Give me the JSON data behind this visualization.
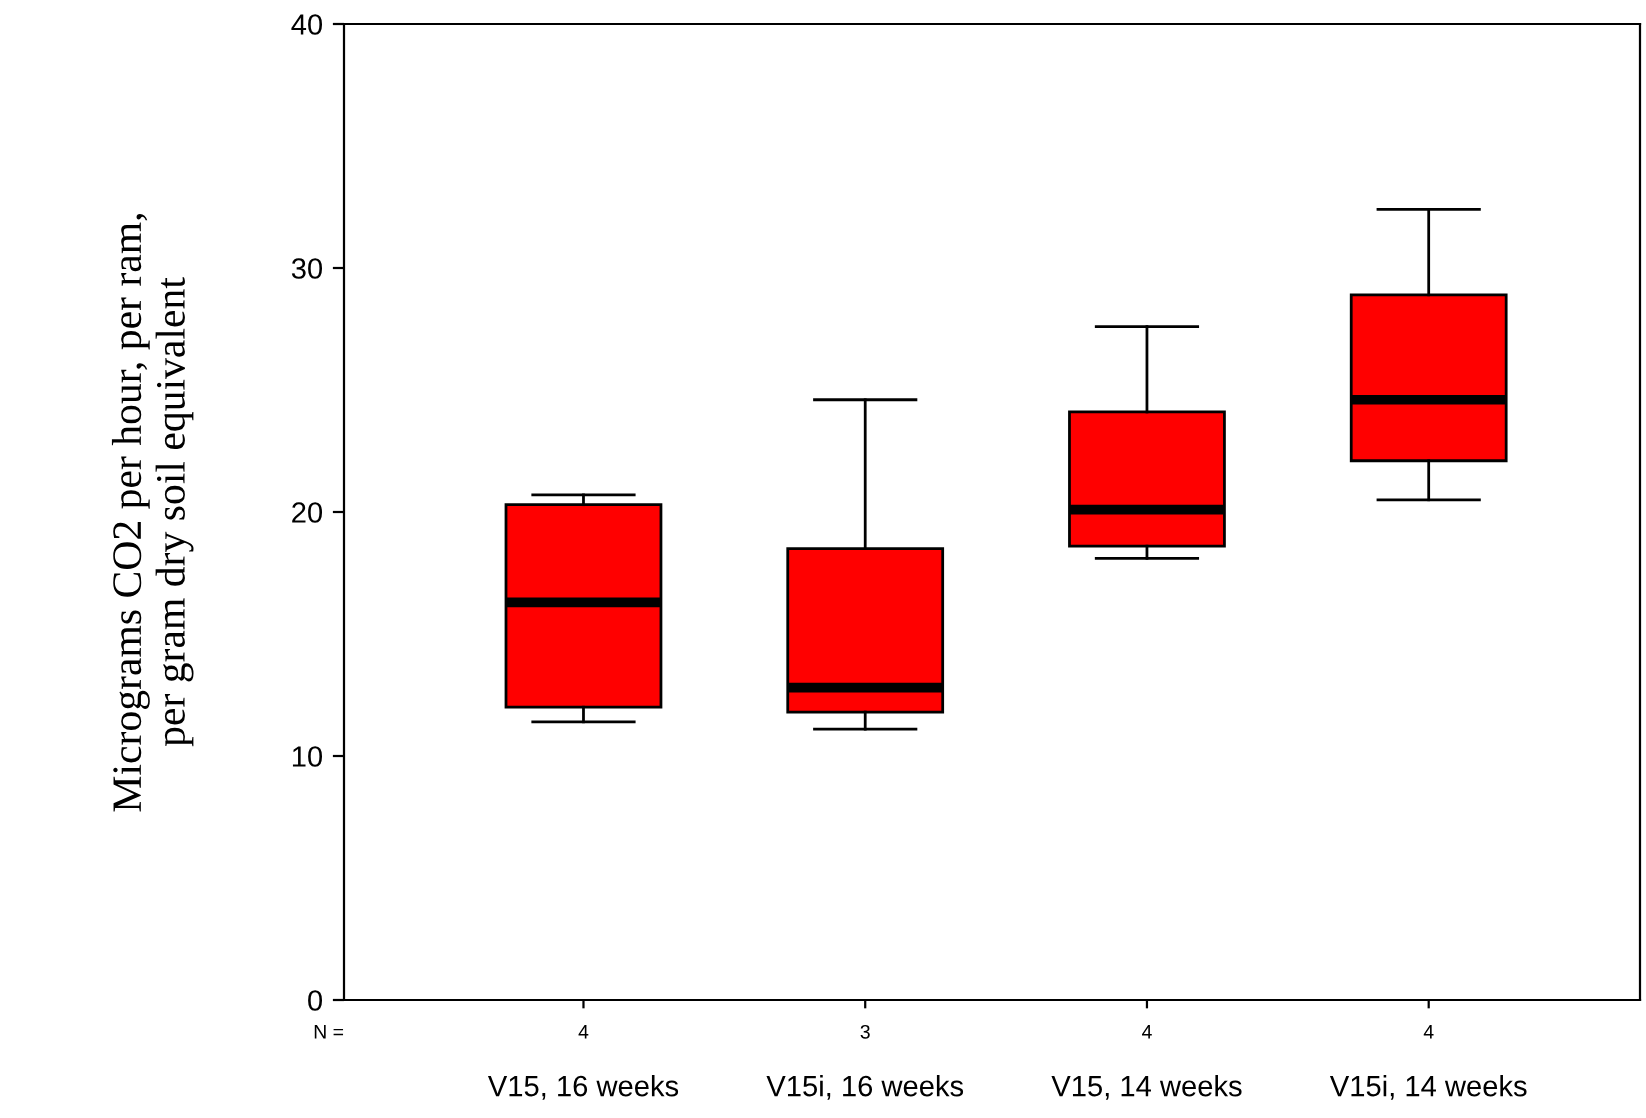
{
  "chart_data": {
    "type": "box",
    "ylabel": "Micrograms CO2 per hour, per ram,\nper gram dry soil equivalent",
    "categories": [
      "V15, 16 weeks",
      "V15i, 16 weeks",
      "V15, 14 weeks",
      "V15i, 14 weeks"
    ],
    "boxes": [
      {
        "low": 11.4,
        "q1": 12.0,
        "median": 16.3,
        "q3": 20.3,
        "high": 20.7
      },
      {
        "low": 11.1,
        "q1": 11.8,
        "median": 12.8,
        "q3": 18.5,
        "high": 24.6
      },
      {
        "low": 18.1,
        "q1": 18.6,
        "median": 20.1,
        "q3": 24.1,
        "high": 27.6
      },
      {
        "low": 20.5,
        "q1": 22.1,
        "median": 24.6,
        "q3": 28.9,
        "high": 32.4
      }
    ],
    "color": "#ff0000",
    "ylim": [
      0,
      40
    ],
    "yticks": [
      0,
      10,
      20,
      30,
      40
    ],
    "annotations": [
      "N =",
      "4",
      "3",
      "4",
      "4"
    ],
    "grid": false,
    "legend": false
  }
}
